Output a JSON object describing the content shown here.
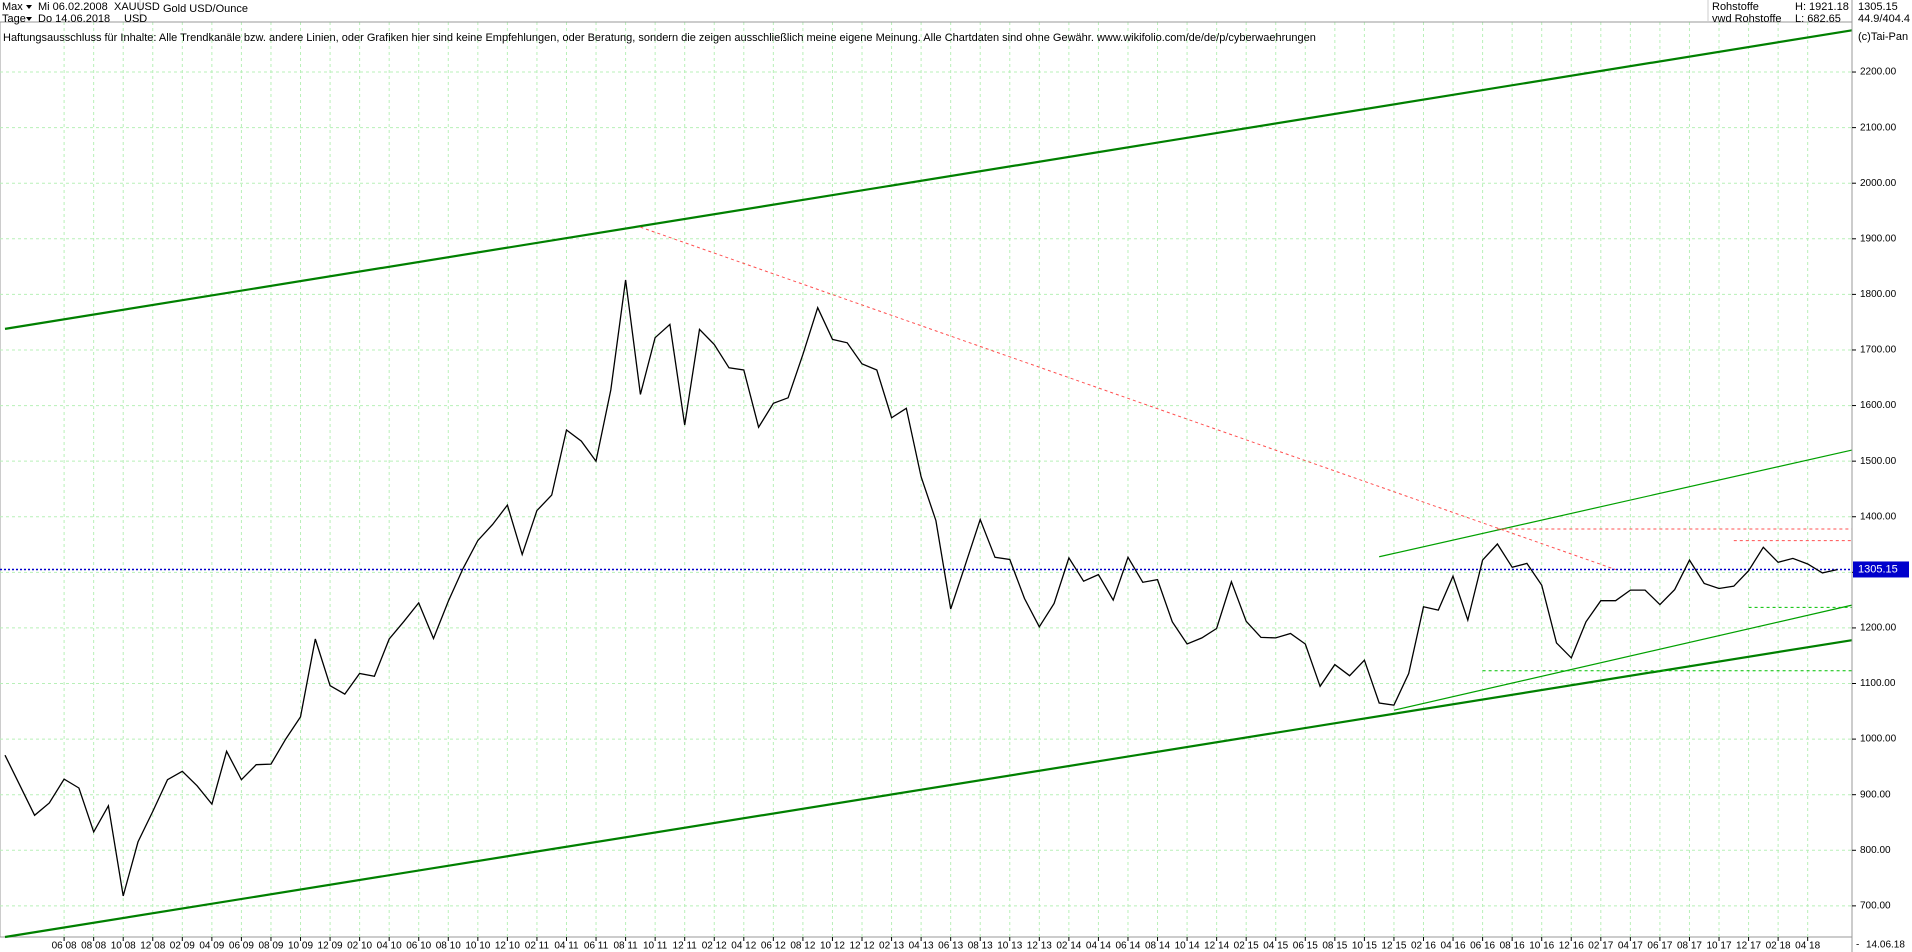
{
  "header": {
    "range": "Max",
    "start": "Mi 06.02.2008",
    "symbol": "XAUUSD",
    "name": "Gold USD/Ounce",
    "period": "Tage",
    "end": "Do 14.06.2018",
    "currency": "USD",
    "market": "Rohstoffe",
    "high": "H: 1921.18",
    "source": "vwd Rohstoffe",
    "low": "L: 682.65",
    "ratio": "44.9/404.4",
    "copyright": "(c)Tai-Pan",
    "disclaimer": "Haftungsausschluss für Inhalte: Alle Trendkanäle bzw. andere Linien, oder Grafiken hier sind keine Empfehlungen, oder Beratung, sondern die zeigen ausschließlich meine eigene Meinung. Alle Chartdaten sind ohne Gewähr.  www.wikifolio.com/de/de/p/cyberwaehrungen"
  },
  "footer": {
    "date": "14.06.18",
    "dash": "-"
  },
  "chart_data": {
    "type": "line",
    "grid": true,
    "current_price": 1305.15,
    "current_color": "#0000cc",
    "xlim": [
      "2008-02",
      "2018-07"
    ],
    "ylim": [
      644,
      2290
    ],
    "yticks": [
      {
        "value": 700,
        "label": "700.00"
      },
      {
        "value": 800,
        "label": "800.00"
      },
      {
        "value": 900,
        "label": "900.00"
      },
      {
        "value": 1000,
        "label": "1000.00"
      },
      {
        "value": 1100,
        "label": "1100.00"
      },
      {
        "value": 1200,
        "label": "1200.00"
      },
      {
        "value": 1300,
        "label": "1300.00"
      },
      {
        "value": 1400,
        "label": "1400.00"
      },
      {
        "value": 1500,
        "label": "1500.00"
      },
      {
        "value": 1600,
        "label": "1600.00"
      },
      {
        "value": 1700,
        "label": "1700.00"
      },
      {
        "value": 1800,
        "label": "1800.00"
      },
      {
        "value": 1900,
        "label": "1900.00"
      },
      {
        "value": 2000,
        "label": "2000.00"
      },
      {
        "value": 2100,
        "label": "2100.00"
      },
      {
        "value": 2200,
        "label": "2200.00"
      }
    ],
    "xticks": [
      {
        "value": "2008-06",
        "label": "06 08"
      },
      {
        "value": "2008-08",
        "label": "08 08"
      },
      {
        "value": "2008-10",
        "label": "10 08"
      },
      {
        "value": "2008-12",
        "label": "12 08"
      },
      {
        "value": "2009-02",
        "label": "02 09"
      },
      {
        "value": "2009-04",
        "label": "04 09"
      },
      {
        "value": "2009-06",
        "label": "06 09"
      },
      {
        "value": "2009-08",
        "label": "08 09"
      },
      {
        "value": "2009-10",
        "label": "10 09"
      },
      {
        "value": "2009-12",
        "label": "12 09"
      },
      {
        "value": "2010-02",
        "label": "02 10"
      },
      {
        "value": "2010-04",
        "label": "04 10"
      },
      {
        "value": "2010-06",
        "label": "06 10"
      },
      {
        "value": "2010-08",
        "label": "08 10"
      },
      {
        "value": "2010-10",
        "label": "10 10"
      },
      {
        "value": "2010-12",
        "label": "12 10"
      },
      {
        "value": "2011-02",
        "label": "02 11"
      },
      {
        "value": "2011-04",
        "label": "04 11"
      },
      {
        "value": "2011-06",
        "label": "06 11"
      },
      {
        "value": "2011-08",
        "label": "08 11"
      },
      {
        "value": "2011-10",
        "label": "10 11"
      },
      {
        "value": "2011-12",
        "label": "12 11"
      },
      {
        "value": "2012-02",
        "label": "02 12"
      },
      {
        "value": "2012-04",
        "label": "04 12"
      },
      {
        "value": "2012-06",
        "label": "06 12"
      },
      {
        "value": "2012-08",
        "label": "08 12"
      },
      {
        "value": "2012-10",
        "label": "10 12"
      },
      {
        "value": "2012-12",
        "label": "12 12"
      },
      {
        "value": "2013-02",
        "label": "02 13"
      },
      {
        "value": "2013-04",
        "label": "04 13"
      },
      {
        "value": "2013-06",
        "label": "06 13"
      },
      {
        "value": "2013-08",
        "label": "08 13"
      },
      {
        "value": "2013-10",
        "label": "10 13"
      },
      {
        "value": "2013-12",
        "label": "12 13"
      },
      {
        "value": "2014-02",
        "label": "02 14"
      },
      {
        "value": "2014-04",
        "label": "04 14"
      },
      {
        "value": "2014-06",
        "label": "06 14"
      },
      {
        "value": "2014-08",
        "label": "08 14"
      },
      {
        "value": "2014-10",
        "label": "10 14"
      },
      {
        "value": "2014-12",
        "label": "12 14"
      },
      {
        "value": "2015-02",
        "label": "02 15"
      },
      {
        "value": "2015-04",
        "label": "04 15"
      },
      {
        "value": "2015-06",
        "label": "06 15"
      },
      {
        "value": "2015-08",
        "label": "08 15"
      },
      {
        "value": "2015-10",
        "label": "10 15"
      },
      {
        "value": "2015-12",
        "label": "12 15"
      },
      {
        "value": "2016-02",
        "label": "02 16"
      },
      {
        "value": "2016-04",
        "label": "04 16"
      },
      {
        "value": "2016-06",
        "label": "06 16"
      },
      {
        "value": "2016-08",
        "label": "08 16"
      },
      {
        "value": "2016-10",
        "label": "10 16"
      },
      {
        "value": "2016-12",
        "label": "12 16"
      },
      {
        "value": "2017-02",
        "label": "02 17"
      },
      {
        "value": "2017-04",
        "label": "04 17"
      },
      {
        "value": "2017-06",
        "label": "06 17"
      },
      {
        "value": "2017-08",
        "label": "08 17"
      },
      {
        "value": "2017-10",
        "label": "10 17"
      },
      {
        "value": "2017-12",
        "label": "12 17"
      },
      {
        "value": "2018-02",
        "label": "02 18"
      },
      {
        "value": "2018-04",
        "label": "04 18"
      }
    ],
    "x": [
      "2008-02",
      "2008-03",
      "2008-04",
      "2008-05",
      "2008-06",
      "2008-07",
      "2008-08",
      "2008-09",
      "2008-10",
      "2008-11",
      "2008-12",
      "2009-01",
      "2009-02",
      "2009-03",
      "2009-04",
      "2009-05",
      "2009-06",
      "2009-07",
      "2009-08",
      "2009-09",
      "2009-10",
      "2009-11",
      "2009-12",
      "2010-01",
      "2010-02",
      "2010-03",
      "2010-04",
      "2010-05",
      "2010-06",
      "2010-07",
      "2010-08",
      "2010-09",
      "2010-10",
      "2010-11",
      "2010-12",
      "2011-01",
      "2011-02",
      "2011-03",
      "2011-04",
      "2011-05",
      "2011-06",
      "2011-07",
      "2011-08",
      "2011-09",
      "2011-10",
      "2011-11",
      "2011-12",
      "2012-01",
      "2012-02",
      "2012-03",
      "2012-04",
      "2012-05",
      "2012-06",
      "2012-07",
      "2012-08",
      "2012-09",
      "2012-10",
      "2012-11",
      "2012-12",
      "2013-01",
      "2013-02",
      "2013-03",
      "2013-04",
      "2013-05",
      "2013-06",
      "2013-07",
      "2013-08",
      "2013-09",
      "2013-10",
      "2013-11",
      "2013-12",
      "2014-01",
      "2014-02",
      "2014-03",
      "2014-04",
      "2014-05",
      "2014-06",
      "2014-07",
      "2014-08",
      "2014-09",
      "2014-10",
      "2014-11",
      "2014-12",
      "2015-01",
      "2015-02",
      "2015-03",
      "2015-04",
      "2015-05",
      "2015-06",
      "2015-07",
      "2015-08",
      "2015-09",
      "2015-10",
      "2015-11",
      "2015-12",
      "2016-01",
      "2016-02",
      "2016-03",
      "2016-04",
      "2016-05",
      "2016-06",
      "2016-07",
      "2016-08",
      "2016-09",
      "2016-10",
      "2016-11",
      "2016-12",
      "2017-01",
      "2017-02",
      "2017-03",
      "2017-04",
      "2017-05",
      "2017-06",
      "2017-07",
      "2017-08",
      "2017-09",
      "2017-10",
      "2017-11",
      "2017-12",
      "2018-01",
      "2018-02",
      "2018-03",
      "2018-04",
      "2018-05",
      "2018-06"
    ],
    "series": [
      {
        "color": "#000000",
        "values": [
          971,
          917,
          863,
          885,
          928,
          912,
          833,
          880,
          718,
          815,
          870,
          927,
          942,
          916,
          883,
          978,
          927,
          954,
          955,
          1000,
          1040,
          1180,
          1096,
          1081,
          1118,
          1113,
          1180,
          1212,
          1245,
          1181,
          1248,
          1307,
          1357,
          1386,
          1421,
          1332,
          1411,
          1439,
          1556,
          1536,
          1500,
          1628,
          1826,
          1620,
          1722,
          1746,
          1565,
          1737,
          1710,
          1668,
          1664,
          1561,
          1604,
          1614,
          1692,
          1776,
          1719,
          1713,
          1675,
          1664,
          1578,
          1595,
          1472,
          1393,
          1234,
          1314,
          1395,
          1327,
          1323,
          1253,
          1202,
          1244,
          1326,
          1284,
          1296,
          1250,
          1327,
          1282,
          1287,
          1211,
          1171,
          1182,
          1199,
          1283,
          1212,
          1183,
          1182,
          1190,
          1171,
          1095,
          1134,
          1114,
          1142,
          1065,
          1061,
          1118,
          1238,
          1232,
          1293,
          1214,
          1322,
          1351,
          1309,
          1316,
          1277,
          1173,
          1146,
          1211,
          1249,
          1249,
          1268,
          1268,
          1242,
          1269,
          1322,
          1280,
          1271,
          1275,
          1303,
          1345,
          1318,
          1325,
          1315,
          1299,
          1305
        ]
      }
    ],
    "trendlines": [
      {
        "x": [
          "2008-02",
          "2018-07"
        ],
        "values": [
          1738,
          2275
        ],
        "color": "#008000",
        "style": "bold"
      },
      {
        "x": [
          "2008-02",
          "2018-07"
        ],
        "values": [
          644,
          1178
        ],
        "color": "#008000",
        "style": "bold"
      },
      {
        "x": [
          "2015-11",
          "2018-07"
        ],
        "values": [
          1328,
          1520
        ],
        "color": "#00a000",
        "style": "solid"
      },
      {
        "x": [
          "2015-12",
          "2018-07"
        ],
        "values": [
          1052,
          1241
        ],
        "color": "#00a000",
        "style": "solid"
      },
      {
        "x": [
          "2011-09",
          "2017-03"
        ],
        "values": [
          1921,
          1305
        ],
        "color": "#ff5050",
        "style": "dashed"
      },
      {
        "x": [
          "2016-07",
          "2018-07"
        ],
        "values": [
          1378,
          1378
        ],
        "color": "#ff5050",
        "style": "dashed"
      },
      {
        "x": [
          "2017-11",
          "2018-07"
        ],
        "values": [
          1357,
          1357
        ],
        "color": "#ff5050",
        "style": "dashed"
      },
      {
        "x": [
          "2017-12",
          "2018-07"
        ],
        "values": [
          1237,
          1237
        ],
        "color": "#00c000",
        "style": "dashed"
      },
      {
        "x": [
          "2016-06",
          "2018-07"
        ],
        "values": [
          1123,
          1123
        ],
        "color": "#00c000",
        "style": "dashed"
      }
    ]
  }
}
